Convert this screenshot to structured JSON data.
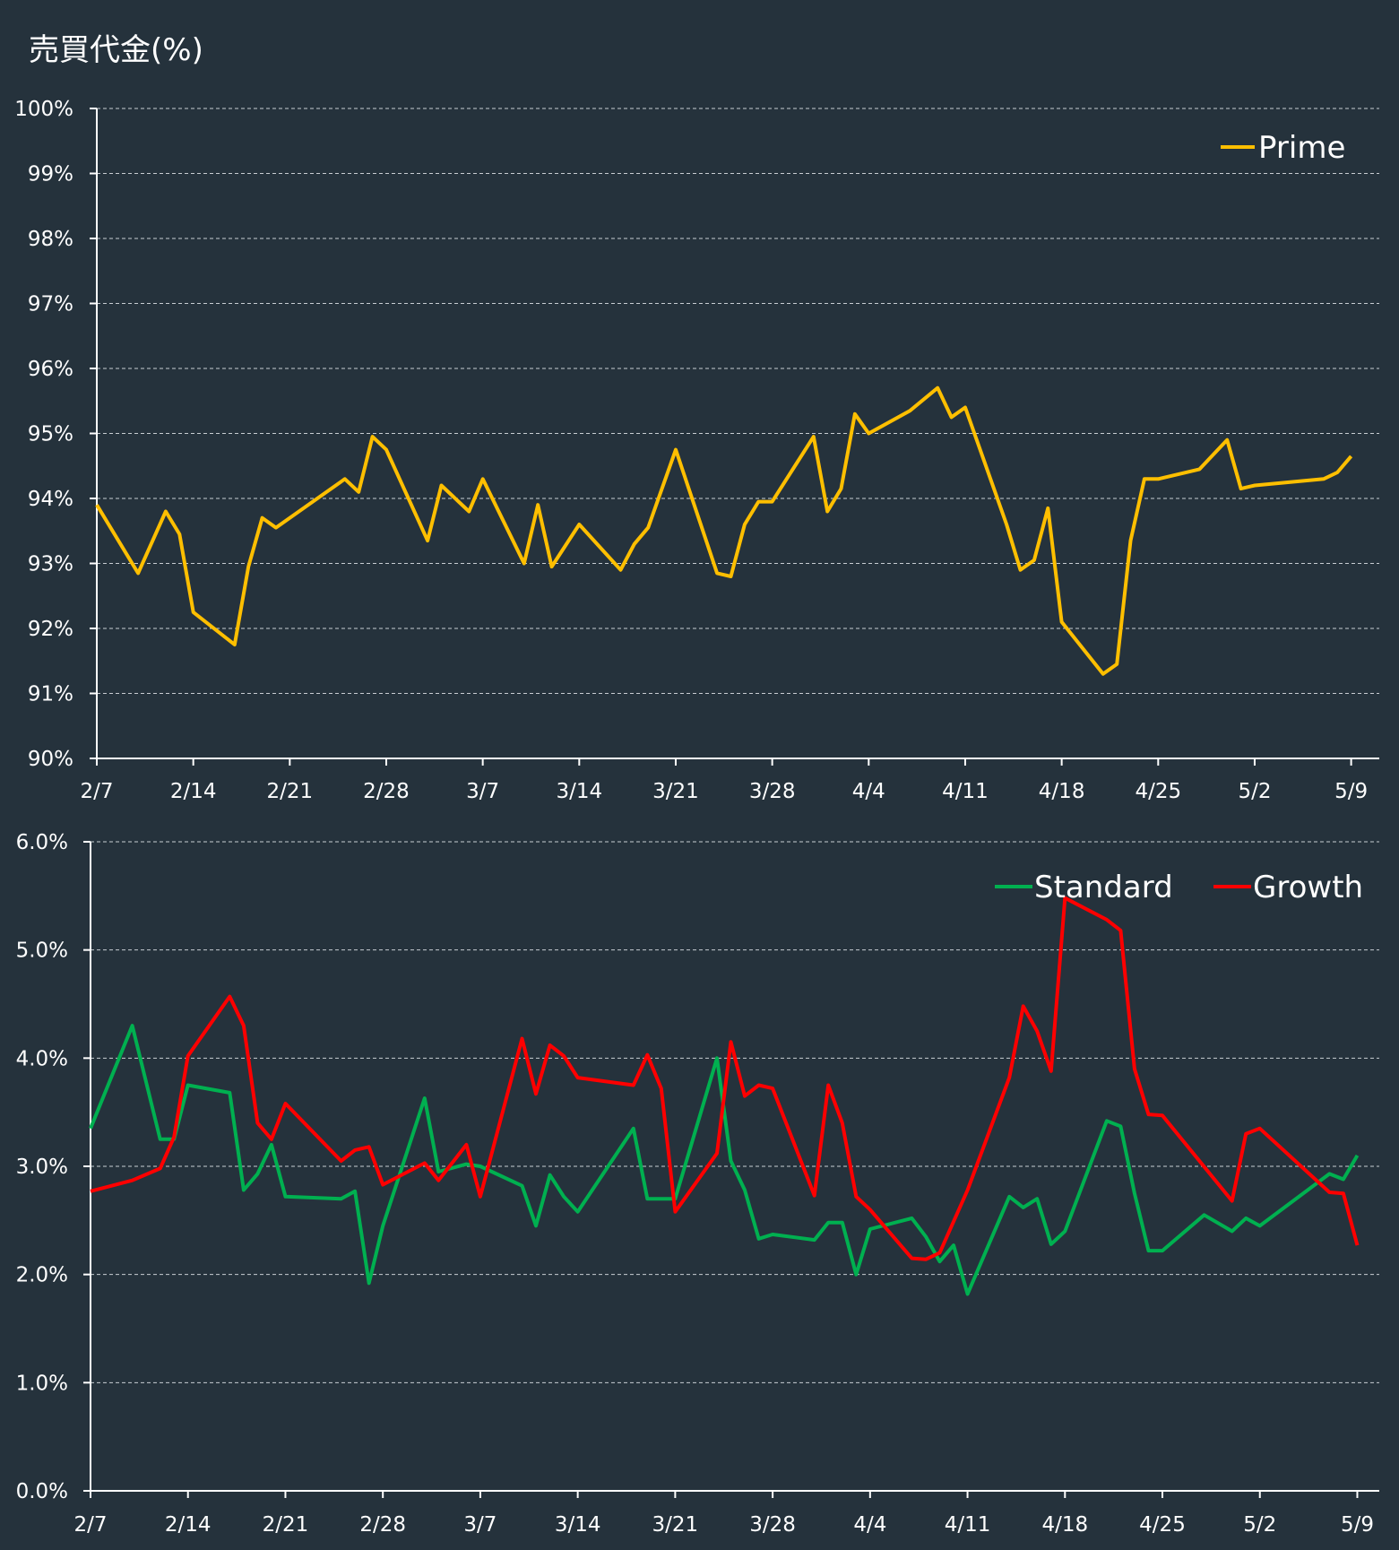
{
  "title": "売買代金(%)",
  "colors": {
    "background": "#25323c",
    "axis": "#ffffff",
    "grid": "#c8cdd2",
    "prime": "#ffbf00",
    "standard": "#00b050",
    "growth": "#ff0000"
  },
  "chart_data": [
    {
      "type": "line",
      "title": "",
      "xlabel": "",
      "ylabel": "",
      "ylim": [
        90,
        100
      ],
      "y_ticks": [
        "90%",
        "91%",
        "92%",
        "93%",
        "94%",
        "95%",
        "96%",
        "97%",
        "98%",
        "99%",
        "100%"
      ],
      "x_ticks": [
        "2/7",
        "2/14",
        "2/21",
        "2/28",
        "3/7",
        "3/14",
        "3/21",
        "3/28",
        "4/4",
        "4/11",
        "4/18",
        "4/25",
        "5/2",
        "5/9"
      ],
      "grid": true,
      "legend": "top-right",
      "x_range": [
        "2/7",
        "5/10"
      ],
      "series": [
        {
          "name": "Prime",
          "color": "#ffbf00",
          "points": [
            [
              "2/7",
              93.9
            ],
            [
              "2/10",
              92.85
            ],
            [
              "2/12",
              93.8
            ],
            [
              "2/13",
              93.45
            ],
            [
              "2/14",
              92.25
            ],
            [
              "2/17",
              91.75
            ],
            [
              "2/18",
              92.95
            ],
            [
              "2/19",
              93.7
            ],
            [
              "2/20",
              93.55
            ],
            [
              "2/21",
              93.7
            ],
            [
              "2/25",
              94.3
            ],
            [
              "2/26",
              94.1
            ],
            [
              "2/27",
              94.95
            ],
            [
              "2/28",
              94.75
            ],
            [
              "3/3",
              93.35
            ],
            [
              "3/4",
              94.2
            ],
            [
              "3/6",
              93.8
            ],
            [
              "3/7",
              94.3
            ],
            [
              "3/10",
              93.0
            ],
            [
              "3/11",
              93.9
            ],
            [
              "3/12",
              92.95
            ],
            [
              "3/14",
              93.6
            ],
            [
              "3/17",
              92.9
            ],
            [
              "3/18",
              93.3
            ],
            [
              "3/19",
              93.55
            ],
            [
              "3/21",
              94.75
            ],
            [
              "3/24",
              92.85
            ],
            [
              "3/25",
              92.8
            ],
            [
              "3/26",
              93.6
            ],
            [
              "3/27",
              93.95
            ],
            [
              "3/28",
              93.95
            ],
            [
              "3/31",
              94.95
            ],
            [
              "4/1",
              93.8
            ],
            [
              "4/2",
              94.15
            ],
            [
              "4/3",
              95.3
            ],
            [
              "4/4",
              95.0
            ],
            [
              "4/7",
              95.35
            ],
            [
              "4/9",
              95.7
            ],
            [
              "4/10",
              95.25
            ],
            [
              "4/11",
              95.4
            ],
            [
              "4/14",
              93.6
            ],
            [
              "4/15",
              92.9
            ],
            [
              "4/16",
              93.05
            ],
            [
              "4/17",
              93.85
            ],
            [
              "4/18",
              92.1
            ],
            [
              "4/21",
              91.3
            ],
            [
              "4/22",
              91.45
            ],
            [
              "4/23",
              93.35
            ],
            [
              "4/24",
              94.3
            ],
            [
              "4/25",
              94.3
            ],
            [
              "4/28",
              94.45
            ],
            [
              "4/30",
              94.9
            ],
            [
              "5/1",
              94.15
            ],
            [
              "5/2",
              94.2
            ],
            [
              "5/7",
              94.3
            ],
            [
              "5/8",
              94.4
            ],
            [
              "5/9",
              94.65
            ]
          ]
        }
      ]
    },
    {
      "type": "line",
      "title": "",
      "xlabel": "",
      "ylabel": "",
      "ylim": [
        0,
        6
      ],
      "y_ticks": [
        "0.0%",
        "1.0%",
        "2.0%",
        "3.0%",
        "4.0%",
        "5.0%",
        "6.0%"
      ],
      "x_ticks": [
        "2/7",
        "2/14",
        "2/21",
        "2/28",
        "3/7",
        "3/14",
        "3/21",
        "3/28",
        "4/4",
        "4/11",
        "4/18",
        "4/25",
        "5/2",
        "5/9"
      ],
      "grid": true,
      "legend": "top-right",
      "x_range": [
        "2/7",
        "5/10"
      ],
      "series": [
        {
          "name": "Standard",
          "color": "#00b050",
          "points": [
            [
              "2/7",
              3.35
            ],
            [
              "2/10",
              4.3
            ],
            [
              "2/12",
              3.25
            ],
            [
              "2/13",
              3.25
            ],
            [
              "2/14",
              3.75
            ],
            [
              "2/17",
              3.68
            ],
            [
              "2/18",
              2.78
            ],
            [
              "2/19",
              2.93
            ],
            [
              "2/20",
              3.2
            ],
            [
              "2/21",
              2.72
            ],
            [
              "2/25",
              2.7
            ],
            [
              "2/26",
              2.77
            ],
            [
              "2/27",
              1.92
            ],
            [
              "2/28",
              2.45
            ],
            [
              "3/3",
              3.63
            ],
            [
              "3/4",
              2.95
            ],
            [
              "3/6",
              3.02
            ],
            [
              "3/7",
              3.0
            ],
            [
              "3/10",
              2.82
            ],
            [
              "3/11",
              2.45
            ],
            [
              "3/12",
              2.92
            ],
            [
              "3/13",
              2.72
            ],
            [
              "3/14",
              2.58
            ],
            [
              "3/18",
              3.35
            ],
            [
              "3/19",
              2.7
            ],
            [
              "3/20",
              2.7
            ],
            [
              "3/21",
              2.7
            ],
            [
              "3/24",
              4.0
            ],
            [
              "3/25",
              3.05
            ],
            [
              "3/26",
              2.78
            ],
            [
              "3/27",
              2.33
            ],
            [
              "3/28",
              2.37
            ],
            [
              "3/31",
              2.32
            ],
            [
              "4/1",
              2.48
            ],
            [
              "4/2",
              2.48
            ],
            [
              "4/3",
              2.0
            ],
            [
              "4/4",
              2.42
            ],
            [
              "4/7",
              2.52
            ],
            [
              "4/8",
              2.35
            ],
            [
              "4/9",
              2.12
            ],
            [
              "4/10",
              2.27
            ],
            [
              "4/11",
              1.82
            ],
            [
              "4/14",
              2.72
            ],
            [
              "4/15",
              2.62
            ],
            [
              "4/16",
              2.7
            ],
            [
              "4/17",
              2.28
            ],
            [
              "4/18",
              2.4
            ],
            [
              "4/21",
              3.42
            ],
            [
              "4/22",
              3.37
            ],
            [
              "4/23",
              2.75
            ],
            [
              "4/24",
              2.22
            ],
            [
              "4/25",
              2.22
            ],
            [
              "4/28",
              2.55
            ],
            [
              "4/30",
              2.4
            ],
            [
              "5/1",
              2.52
            ],
            [
              "5/2",
              2.45
            ],
            [
              "5/7",
              2.93
            ],
            [
              "5/8",
              2.88
            ],
            [
              "5/9",
              3.1
            ]
          ]
        },
        {
          "name": "Growth",
          "color": "#ff0000",
          "points": [
            [
              "2/7",
              2.77
            ],
            [
              "2/10",
              2.87
            ],
            [
              "2/12",
              2.98
            ],
            [
              "2/13",
              3.27
            ],
            [
              "2/14",
              4.02
            ],
            [
              "2/17",
              4.57
            ],
            [
              "2/18",
              4.3
            ],
            [
              "2/19",
              3.4
            ],
            [
              "2/20",
              3.25
            ],
            [
              "2/21",
              3.58
            ],
            [
              "2/25",
              3.05
            ],
            [
              "2/26",
              3.15
            ],
            [
              "2/27",
              3.18
            ],
            [
              "2/28",
              2.83
            ],
            [
              "3/3",
              3.03
            ],
            [
              "3/4",
              2.87
            ],
            [
              "3/6",
              3.2
            ],
            [
              "3/7",
              2.72
            ],
            [
              "3/10",
              4.18
            ],
            [
              "3/11",
              3.67
            ],
            [
              "3/12",
              4.12
            ],
            [
              "3/13",
              4.02
            ],
            [
              "3/14",
              3.82
            ],
            [
              "3/18",
              3.75
            ],
            [
              "3/19",
              4.03
            ],
            [
              "3/20",
              3.72
            ],
            [
              "3/21",
              2.58
            ],
            [
              "3/24",
              3.12
            ],
            [
              "3/25",
              4.15
            ],
            [
              "3/26",
              3.65
            ],
            [
              "3/27",
              3.75
            ],
            [
              "3/28",
              3.72
            ],
            [
              "3/31",
              2.73
            ],
            [
              "4/1",
              3.75
            ],
            [
              "4/2",
              3.4
            ],
            [
              "4/3",
              2.72
            ],
            [
              "4/4",
              2.6
            ],
            [
              "4/7",
              2.15
            ],
            [
              "4/8",
              2.14
            ],
            [
              "4/9",
              2.2
            ],
            [
              "4/11",
              2.78
            ],
            [
              "4/14",
              3.82
            ],
            [
              "4/15",
              4.48
            ],
            [
              "4/16",
              4.25
            ],
            [
              "4/17",
              3.88
            ],
            [
              "4/18",
              5.48
            ],
            [
              "4/21",
              5.28
            ],
            [
              "4/22",
              5.18
            ],
            [
              "4/23",
              3.9
            ],
            [
              "4/24",
              3.48
            ],
            [
              "4/25",
              3.47
            ],
            [
              "4/30",
              2.68
            ],
            [
              "5/1",
              3.3
            ],
            [
              "5/2",
              3.35
            ],
            [
              "5/7",
              2.76
            ],
            [
              "5/8",
              2.75
            ],
            [
              "5/9",
              2.27
            ]
          ]
        }
      ]
    }
  ]
}
